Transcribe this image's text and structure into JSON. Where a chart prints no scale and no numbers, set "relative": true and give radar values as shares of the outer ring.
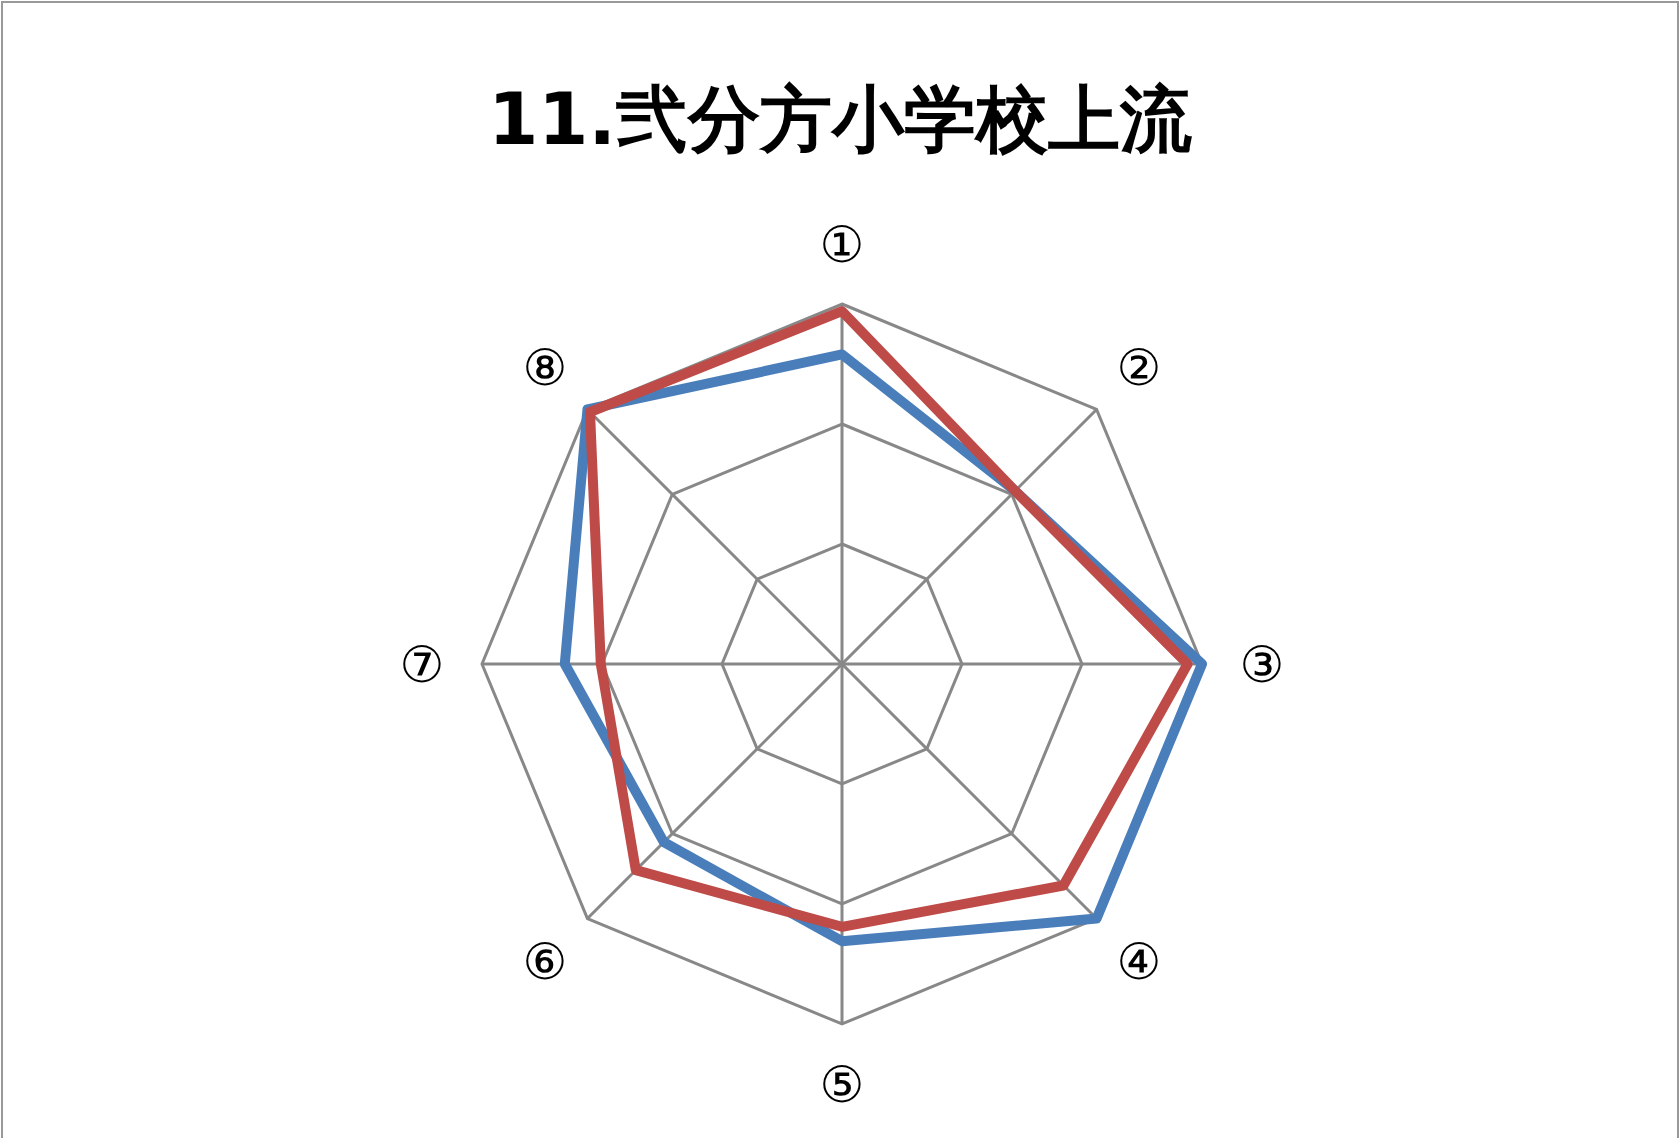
{
  "chart_data": {
    "type": "radar",
    "title": "11.弐分方小学校上流",
    "relative": true,
    "categories": [
      "①",
      "②",
      "③",
      "④",
      "⑤",
      "⑥",
      "⑦",
      "⑧"
    ],
    "series": [
      {
        "color": "#4a7ebb",
        "values": [
          0.86,
          0.68,
          1.0,
          1.0,
          0.77,
          0.7,
          0.77,
          1.0
        ]
      },
      {
        "color": "#be4b48",
        "values": [
          0.98,
          0.68,
          0.96,
          0.87,
          0.73,
          0.81,
          0.67,
          0.99
        ]
      }
    ]
  }
}
